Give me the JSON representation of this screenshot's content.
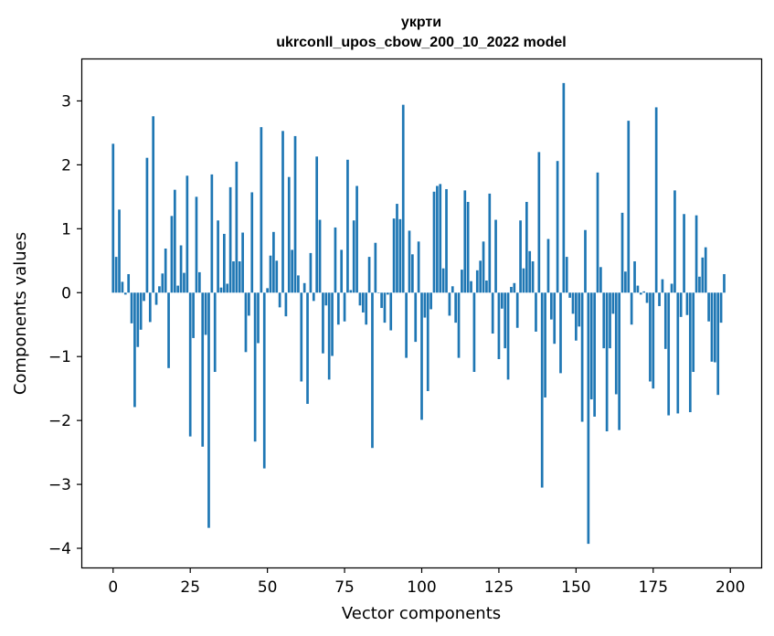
{
  "chart_data": {
    "type": "bar",
    "title": "укрти",
    "subtitle": "ukrconll_upos_cbow_200_10_2022 model",
    "xlabel": "Vector components",
    "ylabel": "Components values",
    "xlim": [
      -10,
      210
    ],
    "ylim": [
      -4.3,
      3.65
    ],
    "xticks": [
      0,
      25,
      50,
      75,
      100,
      125,
      150,
      175,
      200
    ],
    "yticks": [
      3,
      2,
      1,
      0,
      -1,
      -2,
      -3,
      -4
    ],
    "ytick_labels": [
      "3",
      "2",
      "1",
      "0",
      "−1",
      "−2",
      "−3",
      "−4"
    ],
    "bar_color": "#1f77b4",
    "values": [
      2.33,
      0.56,
      1.3,
      0.17,
      -0.03,
      0.29,
      -0.48,
      -1.79,
      -0.85,
      -0.58,
      -0.13,
      2.11,
      -0.46,
      2.76,
      -0.19,
      0.1,
      0.3,
      0.69,
      -1.18,
      1.2,
      1.61,
      0.11,
      0.74,
      0.31,
      1.83,
      -2.25,
      -0.71,
      1.5,
      0.32,
      -2.41,
      -0.66,
      -3.68,
      1.85,
      -1.24,
      1.13,
      0.08,
      0.92,
      0.14,
      1.65,
      0.49,
      2.05,
      0.49,
      0.94,
      -0.93,
      -0.36,
      1.57,
      -2.33,
      -0.79,
      2.59,
      -2.75,
      0.07,
      0.58,
      0.95,
      0.5,
      -0.23,
      2.53,
      -0.37,
      1.81,
      0.67,
      2.45,
      0.27,
      -1.39,
      0.15,
      -1.74,
      0.62,
      -0.13,
      2.13,
      1.14,
      -0.95,
      -0.2,
      -1.36,
      -0.99,
      1.02,
      -0.5,
      0.67,
      -0.45,
      2.08,
      0.04,
      1.13,
      1.67,
      -0.2,
      -0.31,
      -0.5,
      0.56,
      -2.43,
      0.78,
      0.0,
      -0.24,
      -0.47,
      -0.03,
      -0.59,
      1.16,
      1.39,
      1.15,
      2.94,
      -1.02,
      0.97,
      0.6,
      -0.77,
      0.8,
      -1.99,
      -0.39,
      -1.54,
      -0.26,
      1.58,
      1.67,
      1.7,
      0.38,
      1.62,
      -0.36,
      0.1,
      -0.47,
      -1.02,
      0.36,
      1.6,
      1.42,
      0.18,
      -1.24,
      0.35,
      0.5,
      0.8,
      0.19,
      1.55,
      -0.64,
      1.14,
      -1.04,
      -0.25,
      -0.87,
      -1.36,
      0.09,
      0.15,
      -0.55,
      1.13,
      0.38,
      1.42,
      0.65,
      0.49,
      -0.61,
      2.2,
      -3.05,
      -1.64,
      0.84,
      -0.42,
      -0.8,
      2.06,
      -1.26,
      3.28,
      0.56,
      -0.08,
      -0.33,
      -0.75,
      -0.53,
      -2.02,
      0.98,
      -3.93,
      -1.67,
      -1.94,
      1.88,
      0.4,
      -0.87,
      -2.17,
      -0.87,
      -0.33,
      -1.59,
      -2.15,
      1.25,
      0.33,
      2.69,
      -0.5,
      0.49,
      0.11,
      -0.03,
      0.02,
      -0.16,
      -1.39,
      -1.5,
      2.9,
      -0.21,
      0.21,
      -0.88,
      -1.92,
      0.14,
      1.6,
      -1.89,
      -0.38,
      1.23,
      -0.35,
      -1.87,
      -1.24,
      1.21,
      0.25,
      0.55,
      0.71,
      -0.45,
      -1.08,
      -1.09,
      -1.6,
      -0.47,
      0.29
    ]
  }
}
